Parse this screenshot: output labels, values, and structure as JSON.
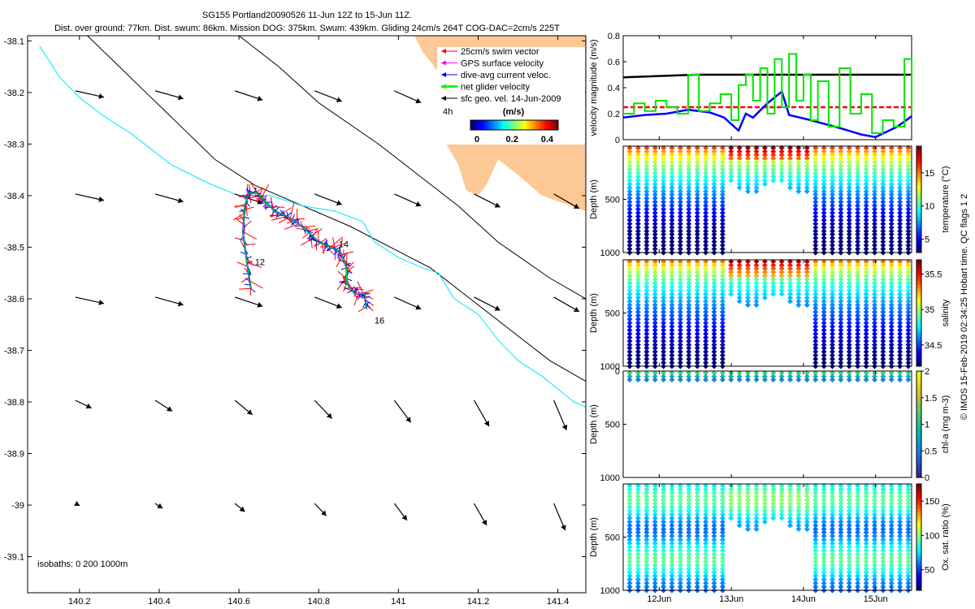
{
  "title": {
    "line1": "SG155 Portland20090526 11-Jun 12Z to 15-Jun 11Z.",
    "line2": "Dist. over ground: 77km. Dist. swum: 86km. Mission DOG: 375km. Swum: 439km. Gliding 24cm/s 264T COG-DAC=2cm/s 225T"
  },
  "side_caption": "© IMOS 15-Feb-2019 02:34:25 Hobart time. QC flags 1  2",
  "colors": {
    "land": "#fcc896",
    "coast": "#000000",
    "isobath": "#00e5ff",
    "swim": "#ff0000",
    "gps": "#ff00ff",
    "dac": "#0000ff",
    "net": "#00ff00",
    "geo": "#000000"
  },
  "chart_data": [
    {
      "id": "map",
      "type": "map",
      "xlim": [
        140.07,
        141.47
      ],
      "ylim": [
        -39.17,
        -38.09
      ],
      "xticks": [
        140.2,
        140.4,
        140.6,
        140.8,
        141,
        141.2,
        141.4
      ],
      "xtick_labels": [
        "140.2",
        "140.4",
        "140.6",
        "140.8",
        "141",
        "141.2",
        "141.4"
      ],
      "yticks": [
        -38.1,
        -38.2,
        -38.3,
        -38.4,
        -38.5,
        -38.6,
        -38.7,
        -38.8,
        -38.9,
        -39,
        -39.1
      ],
      "ytick_labels": [
        "-38.1",
        "-38.2",
        "-38.3",
        "-38.4",
        "-38.5",
        "-38.6",
        "-38.7",
        "-38.8",
        "-38.9",
        "-39",
        "-39.1"
      ],
      "legend": {
        "placement": "top-right",
        "entries": [
          "25cm/s swim vector",
          "GPS surface velocity",
          "dive-avg current veloc.",
          "net glider velocity",
          "sfc geo. vel. 14-Jun-2009"
        ],
        "colors": [
          "#ff0000",
          "#ff00ff",
          "#0000ff",
          "#00ff00",
          "#000000"
        ],
        "time_label": "4h"
      },
      "colorbar": {
        "label": "(m/s)",
        "ticks": [
          0,
          0.2,
          0.4
        ],
        "tick_labels": [
          "0",
          "0.2",
          "0.4"
        ],
        "range": [
          0,
          0.5
        ]
      },
      "isobath_label": "isobaths: 0   200   1000m",
      "day_labels": [
        {
          "text": "12",
          "lon": 140.64,
          "lat": -38.535
        },
        {
          "text": "14",
          "lon": 140.85,
          "lat": -38.5
        },
        {
          "text": "16",
          "lon": 140.94,
          "lat": -38.648
        }
      ],
      "track": [
        [
          140.63,
          -38.58
        ],
        [
          140.62,
          -38.53
        ],
        [
          140.61,
          -38.47
        ],
        [
          140.615,
          -38.42
        ],
        [
          140.625,
          -38.395
        ],
        [
          140.645,
          -38.395
        ],
        [
          140.665,
          -38.41
        ],
        [
          140.69,
          -38.43
        ],
        [
          140.72,
          -38.44
        ],
        [
          140.75,
          -38.455
        ],
        [
          140.78,
          -38.475
        ],
        [
          140.8,
          -38.49
        ],
        [
          140.83,
          -38.5
        ],
        [
          140.855,
          -38.51
        ],
        [
          140.87,
          -38.54
        ],
        [
          140.87,
          -38.57
        ],
        [
          140.89,
          -38.59
        ],
        [
          140.915,
          -38.59
        ],
        [
          140.92,
          -38.62
        ]
      ],
      "coastline": [
        [
          140.6,
          -38.09
        ],
        [
          140.7,
          -38.15
        ],
        [
          140.8,
          -38.22
        ],
        [
          140.95,
          -38.3
        ],
        [
          141.05,
          -38.36
        ],
        [
          141.15,
          -38.42
        ],
        [
          141.25,
          -38.49
        ],
        [
          141.38,
          -38.56
        ],
        [
          141.47,
          -38.6
        ]
      ],
      "land": [
        [
          141.04,
          -38.09
        ],
        [
          141.47,
          -38.09
        ],
        [
          141.47,
          -38.43
        ],
        [
          141.36,
          -38.4
        ],
        [
          141.3,
          -38.36
        ],
        [
          141.25,
          -38.33
        ],
        [
          141.22,
          -38.38
        ],
        [
          141.2,
          -38.4
        ],
        [
          141.17,
          -38.39
        ],
        [
          141.15,
          -38.34
        ],
        [
          141.12,
          -38.3
        ],
        [
          141.12,
          -38.22
        ],
        [
          141.1,
          -38.16
        ],
        [
          141.06,
          -38.12
        ]
      ],
      "isobath_200": [
        [
          140.1,
          -38.11
        ],
        [
          140.15,
          -38.17
        ],
        [
          140.2,
          -38.21
        ],
        [
          140.26,
          -38.245
        ],
        [
          140.33,
          -38.28
        ],
        [
          140.43,
          -38.34
        ],
        [
          140.52,
          -38.375
        ],
        [
          140.6,
          -38.4
        ],
        [
          140.68,
          -38.4
        ],
        [
          140.76,
          -38.42
        ],
        [
          140.84,
          -38.43
        ],
        [
          140.91,
          -38.45
        ],
        [
          140.94,
          -38.49
        ],
        [
          141.0,
          -38.52
        ],
        [
          141.06,
          -38.54
        ],
        [
          141.1,
          -38.55
        ],
        [
          141.14,
          -38.6
        ],
        [
          141.2,
          -38.63
        ],
        [
          141.25,
          -38.68
        ],
        [
          141.3,
          -38.72
        ],
        [
          141.36,
          -38.75
        ],
        [
          141.44,
          -38.8
        ],
        [
          141.47,
          -38.81
        ]
      ],
      "isobath_1000": [
        [
          140.22,
          -38.09
        ],
        [
          140.3,
          -38.15
        ],
        [
          140.38,
          -38.21
        ],
        [
          140.46,
          -38.27
        ],
        [
          140.54,
          -38.33
        ],
        [
          140.64,
          -38.38
        ],
        [
          140.76,
          -38.42
        ],
        [
          140.88,
          -38.46
        ],
        [
          140.98,
          -38.5
        ],
        [
          141.08,
          -38.54
        ],
        [
          141.18,
          -38.6
        ],
        [
          141.28,
          -38.66
        ],
        [
          141.38,
          -38.72
        ],
        [
          141.47,
          -38.76
        ]
      ]
    },
    {
      "id": "velocity",
      "type": "line",
      "ylabel": "velocity magnitude (m/s)",
      "xlim": [
        11.5,
        15.5
      ],
      "ylim": [
        0,
        0.8
      ],
      "yticks": [
        0,
        0.2,
        0.4,
        0.6,
        0.8
      ],
      "ytick_labels": [
        "0",
        "0.2",
        "0.4",
        "0.6",
        "0.8"
      ],
      "series": [
        {
          "name": "sfc geo. vel.",
          "color": "#000000",
          "x": [
            11.5,
            12.0,
            12.5,
            13.0,
            13.5,
            14.0,
            14.5,
            15.0,
            15.5
          ],
          "values": [
            0.48,
            0.49,
            0.5,
            0.5,
            0.5,
            0.5,
            0.5,
            0.5,
            0.5
          ]
        },
        {
          "name": "25cm/s swim vector",
          "color": "#ff0000",
          "dashed": true,
          "x": [
            11.5,
            15.5
          ],
          "values": [
            0.25,
            0.25
          ]
        },
        {
          "name": "dive-avg current veloc.",
          "color": "#0000ff",
          "x": [
            11.5,
            11.8,
            12.1,
            12.4,
            12.7,
            12.9,
            13.0,
            13.1,
            13.2,
            13.3,
            13.5,
            13.7,
            13.8,
            14.1,
            14.5,
            14.8,
            15.0,
            15.3,
            15.5
          ],
          "values": [
            0.17,
            0.19,
            0.2,
            0.23,
            0.21,
            0.17,
            0.12,
            0.07,
            0.2,
            0.17,
            0.28,
            0.37,
            0.19,
            0.15,
            0.09,
            0.04,
            0.02,
            0.1,
            0.18
          ]
        },
        {
          "name": "net glider velocity",
          "color": "#00e600",
          "step": true,
          "x": [
            11.5,
            11.65,
            11.8,
            11.95,
            12.1,
            12.25,
            12.4,
            12.55,
            12.7,
            12.85,
            13.0,
            13.1,
            13.2,
            13.3,
            13.4,
            13.5,
            13.6,
            13.7,
            13.8,
            13.9,
            14.0,
            14.1,
            14.2,
            14.35,
            14.5,
            14.65,
            14.8,
            14.95,
            15.1,
            15.25,
            15.4,
            15.5
          ],
          "values": [
            0.2,
            0.28,
            0.22,
            0.3,
            0.25,
            0.2,
            0.5,
            0.22,
            0.28,
            0.35,
            0.15,
            0.42,
            0.5,
            0.3,
            0.55,
            0.2,
            0.62,
            0.25,
            0.66,
            0.3,
            0.5,
            0.15,
            0.45,
            0.1,
            0.55,
            0.2,
            0.35,
            0.05,
            0.15,
            0.1,
            0.62,
            0.2
          ]
        }
      ]
    },
    {
      "id": "temperature",
      "type": "scatter",
      "ylabel": "Depth (m)",
      "colorbar_label": "temperature (°C)",
      "ylim": [
        0,
        1000
      ],
      "yticks": [
        500,
        1000
      ],
      "ytick_labels": [
        "500",
        "1000"
      ],
      "clim": [
        3,
        19
      ],
      "cticks": [
        5,
        10,
        15
      ],
      "ctick_labels": [
        "5",
        "10",
        "15"
      ]
    },
    {
      "id": "salinity",
      "type": "scatter",
      "ylabel": "Depth (m)",
      "colorbar_label": "salinity",
      "ylim": [
        0,
        1000
      ],
      "yticks": [
        500,
        1000
      ],
      "ytick_labels": [
        "500",
        "1000"
      ],
      "clim": [
        34.2,
        35.7
      ],
      "cticks": [
        34.5,
        35,
        35.5
      ],
      "ctick_labels": [
        "34.5",
        "35",
        "35.5"
      ]
    },
    {
      "id": "chla",
      "type": "scatter",
      "ylabel": "Depth (m)",
      "colorbar_label": "chl-a (mg m-3)",
      "ylim": [
        0,
        1000
      ],
      "yticks": [
        0,
        500,
        1000
      ],
      "ytick_labels": [
        "0",
        "500",
        "1000"
      ],
      "clim": [
        0,
        2
      ],
      "cticks": [
        0,
        0.5,
        1,
        1.5,
        2
      ],
      "ctick_labels": [
        "0",
        "0.5",
        "1",
        "1.5",
        "2"
      ]
    },
    {
      "id": "oxygen",
      "type": "scatter",
      "ylabel": "Depth (m)",
      "colorbar_label": "Ox. sat. ratio (%)",
      "ylim": [
        0,
        1000
      ],
      "yticks": [
        500,
        1000
      ],
      "ytick_labels": [
        "500",
        "1000"
      ],
      "clim": [
        20,
        175
      ],
      "cticks": [
        50,
        100,
        150
      ],
      "ctick_labels": [
        "50",
        "100",
        "150"
      ]
    }
  ],
  "time_axis": {
    "xlim": [
      11.5,
      15.5
    ],
    "ticks": [
      12,
      13,
      14,
      15
    ],
    "tick_labels": [
      "12Jun",
      "13Jun",
      "14Jun",
      "15Jun"
    ]
  }
}
